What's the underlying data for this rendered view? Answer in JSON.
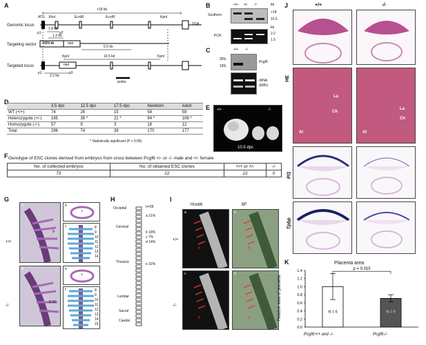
{
  "panel_labels": [
    "A",
    "B",
    "C",
    "D",
    "E",
    "F",
    "G",
    "H",
    "I",
    "J",
    "K"
  ],
  "panelA": {
    "row_labels": [
      "Genomic locus",
      "Targeting vector",
      "Targeted locus"
    ],
    "top": {
      "span": ">18 kb",
      "kpnI": "KpnI",
      "atg": "ATG",
      "xhoI": "XhoI",
      "ecoRI_1": "EcoRI",
      "ecoRI_2": "EcoRI",
      "tga": "TGA",
      "p1": "p1",
      "p2": "p2",
      "kb18": "1.8 kb"
    },
    "mid": {
      "hsv": "HSV-tk",
      "neo": "neo",
      "kb13": "1.3 kb",
      "kb60": "6.0 kb"
    },
    "bot": {
      "kpnI_a": "KpnI",
      "kpnI_b": "KpnI",
      "kb105": "10.5 kb",
      "p1": "p1",
      "p3": "p3",
      "kb22": "2.2 kb",
      "neo": "neo",
      "probe": "probe"
    }
  },
  "panelB": {
    "genotypes": [
      "+/+",
      "+/-",
      "-/-"
    ],
    "kb": "kb",
    "southern": "Southern",
    "pcr": "PCR",
    "south_sizes": [
      ">18",
      "10.5"
    ],
    "pcr_sizes": [
      "2.2",
      "1.5"
    ]
  },
  "panelC": {
    "genotypes": [
      "+/+",
      "-/-"
    ],
    "r28": "28S-",
    "r18": "18S-",
    "gene": "Pcgf6",
    "rrna": "rRNA",
    "etbr": "(EtBr)"
  },
  "panelD": {
    "headers": [
      "3.5 dpc",
      "12.5 dpc",
      "17.5 dpc",
      "Newborn",
      "Adult"
    ],
    "rows": [
      {
        "label": "WT (+/+)",
        "values": [
          "74",
          "26",
          "15",
          "58",
          "59"
        ]
      },
      {
        "label": "Heterozygote (+/-)",
        "values": [
          "165",
          "39",
          "21",
          "94",
          "106"
        ]
      },
      {
        "label": "Homozygote (-/-)",
        "values": [
          "57",
          "9",
          "3",
          "18",
          "12"
        ]
      },
      {
        "label": "Total",
        "values": [
          "296",
          "74",
          "39",
          "170",
          "177"
        ]
      }
    ],
    "star": "*",
    "footnote": "* Statistically significant (P < 0.05)"
  },
  "panelE": {
    "left": "+/+",
    "right": "-/-",
    "stage": "10.5 dpc"
  },
  "panelF": {
    "title": "Genotype of ESC clones derived from embryos from cross between Pcgf6 +/- or -/- male and +/- female",
    "headers": [
      "No. of collected embryos",
      "No. of obtained ESC clones",
      "+/+ or +/-",
      "-/-"
    ],
    "values": [
      "73",
      "22",
      "22",
      "0"
    ]
  },
  "panelG": {
    "subs": [
      "a",
      "b",
      "c",
      "d",
      "e",
      "f"
    ],
    "wt": "+/+",
    "ko": "-/-",
    "mark_a": "9",
    "mark_d": "9-10",
    "top_b": "7",
    "top_e": "7",
    "nums_c": [
      "8",
      "9",
      "10",
      "11",
      "12",
      "13",
      "14"
    ],
    "nums_f": [
      "8",
      "9",
      "10",
      "11",
      "12",
      "13",
      "14",
      "15"
    ]
  },
  "panelH": {
    "n": "n=28",
    "regions": [
      "Occipital",
      "Cervical",
      "Thoracic",
      "Lumbar",
      "Sacral",
      "Caudal"
    ],
    "marks": [
      {
        "letter": "a",
        "pct": "21%"
      },
      {
        "letter": "b",
        "pct": "18%"
      },
      {
        "letter": "c",
        "pct": "7%"
      },
      {
        "letter": "d",
        "pct": "14%"
      },
      {
        "letter": "e",
        "pct": "32%"
      }
    ]
  },
  "panelI": {
    "col1": "Hoxb6",
    "col2": "BF",
    "wt": "+/+",
    "ko": "-/-",
    "subs": [
      "a",
      "b",
      "c",
      "d"
    ],
    "mark": "8"
  },
  "panelJ": {
    "col_wt": "+/+",
    "col_ko": "-/-",
    "rows": [
      "HE",
      "Pl1",
      "Tpbp"
    ],
    "la": "La",
    "ch": "Ch",
    "al": "Al"
  },
  "chart_data": {
    "type": "bar",
    "title": "Placenta area",
    "ylabel": "Relative area of placenta",
    "categories": [
      "Pcgf6+/+ and -/-",
      "Pcgf6-/-"
    ],
    "values": [
      1.0,
      0.71
    ],
    "errors": [
      0.32,
      0.09
    ],
    "n_labels": [
      "N = 6",
      "N = 9"
    ],
    "pvalue": "p = 0.015",
    "ylim": [
      0,
      1.4
    ],
    "yticks": [
      "0.0",
      "0.2",
      "0.4",
      "0.6",
      "0.8",
      "1.0",
      "1.2",
      "1.4"
    ],
    "colors": [
      "#ffffff",
      "#555555"
    ]
  }
}
